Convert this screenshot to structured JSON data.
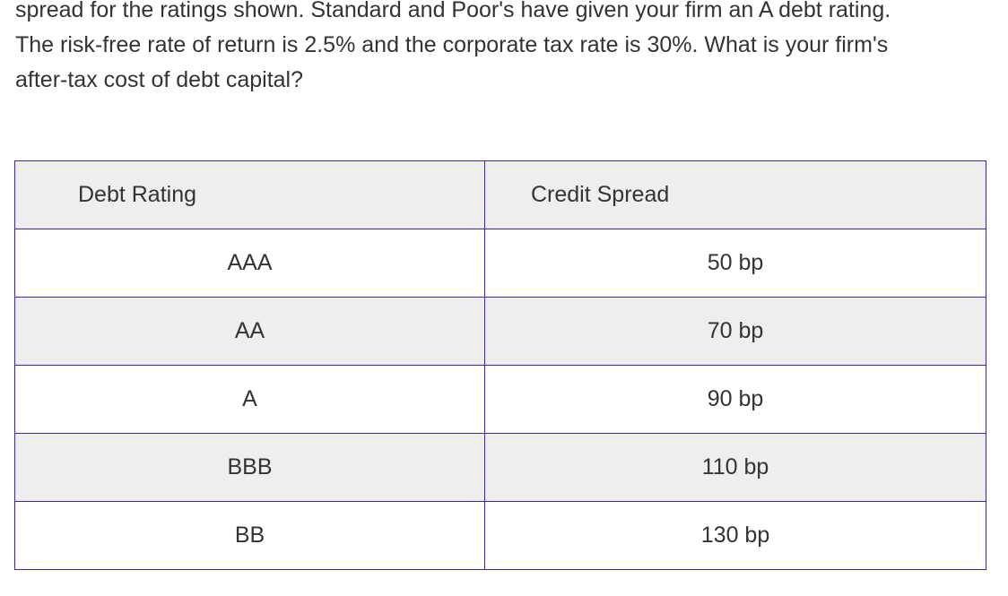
{
  "question": {
    "lines": [
      "spread for the ratings shown.  Standard and Poor's have given your firm an A debt rating.",
      "The risk-free rate of return is 2.5% and the corporate tax rate is 30%.  What is your firm's",
      "after-tax cost of debt capital?"
    ]
  },
  "table": {
    "headers": [
      "Debt Rating",
      "Credit Spread"
    ],
    "rows": [
      {
        "rating": "AAA",
        "spread": "50 bp"
      },
      {
        "rating": "AA",
        "spread": "70 bp"
      },
      {
        "rating": "A",
        "spread": "90 bp"
      },
      {
        "rating": "BBB",
        "spread": "110 bp"
      },
      {
        "rating": "BB",
        "spread": "130 bp"
      }
    ]
  },
  "colors": {
    "border": "#3d1cd6",
    "stripe": "#eeeeee",
    "text": "#333333"
  }
}
